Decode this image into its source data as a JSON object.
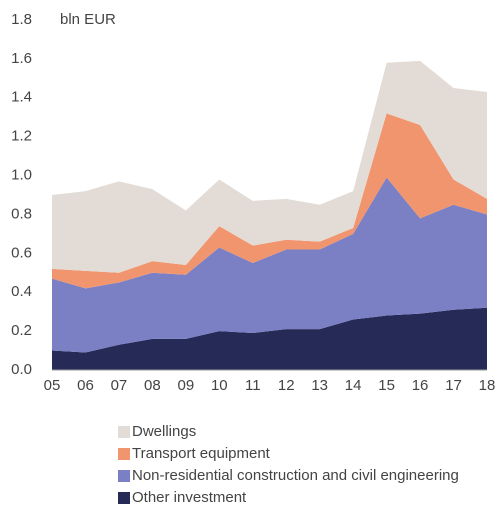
{
  "chart_data": {
    "type": "stacked_area",
    "y_label": "bln EUR",
    "categories": [
      "05",
      "06",
      "07",
      "08",
      "09",
      "10",
      "11",
      "12",
      "13",
      "14",
      "15",
      "16",
      "17",
      "18"
    ],
    "series": [
      {
        "name": "Dwellings",
        "color": "#e3dcd6",
        "values": [
          0.38,
          0.41,
          0.47,
          0.37,
          0.28,
          0.24,
          0.23,
          0.21,
          0.19,
          0.19,
          0.26,
          0.33,
          0.47,
          0.55
        ]
      },
      {
        "name": "Transport equipment",
        "color": "#f0956e",
        "values": [
          0.05,
          0.09,
          0.05,
          0.06,
          0.05,
          0.11,
          0.09,
          0.05,
          0.04,
          0.03,
          0.33,
          0.48,
          0.13,
          0.08
        ]
      },
      {
        "name": "Non-residential construction and civil engineering",
        "color": "#7b7fc4",
        "values": [
          0.37,
          0.33,
          0.32,
          0.34,
          0.33,
          0.43,
          0.36,
          0.41,
          0.41,
          0.44,
          0.71,
          0.49,
          0.54,
          0.48
        ]
      },
      {
        "name": "Other investment",
        "color": "#262a57",
        "values": [
          0.1,
          0.09,
          0.13,
          0.16,
          0.16,
          0.2,
          0.19,
          0.21,
          0.21,
          0.26,
          0.28,
          0.29,
          0.31,
          0.32
        ]
      }
    ],
    "ylim": [
      0,
      1.8
    ],
    "yticks": [
      {
        "value": 0,
        "label": "0.0"
      },
      0.2,
      0.4,
      0.6,
      0.8,
      {
        "value": 1,
        "label": "1.0"
      },
      1.2,
      1.4,
      1.6,
      1.8
    ]
  }
}
